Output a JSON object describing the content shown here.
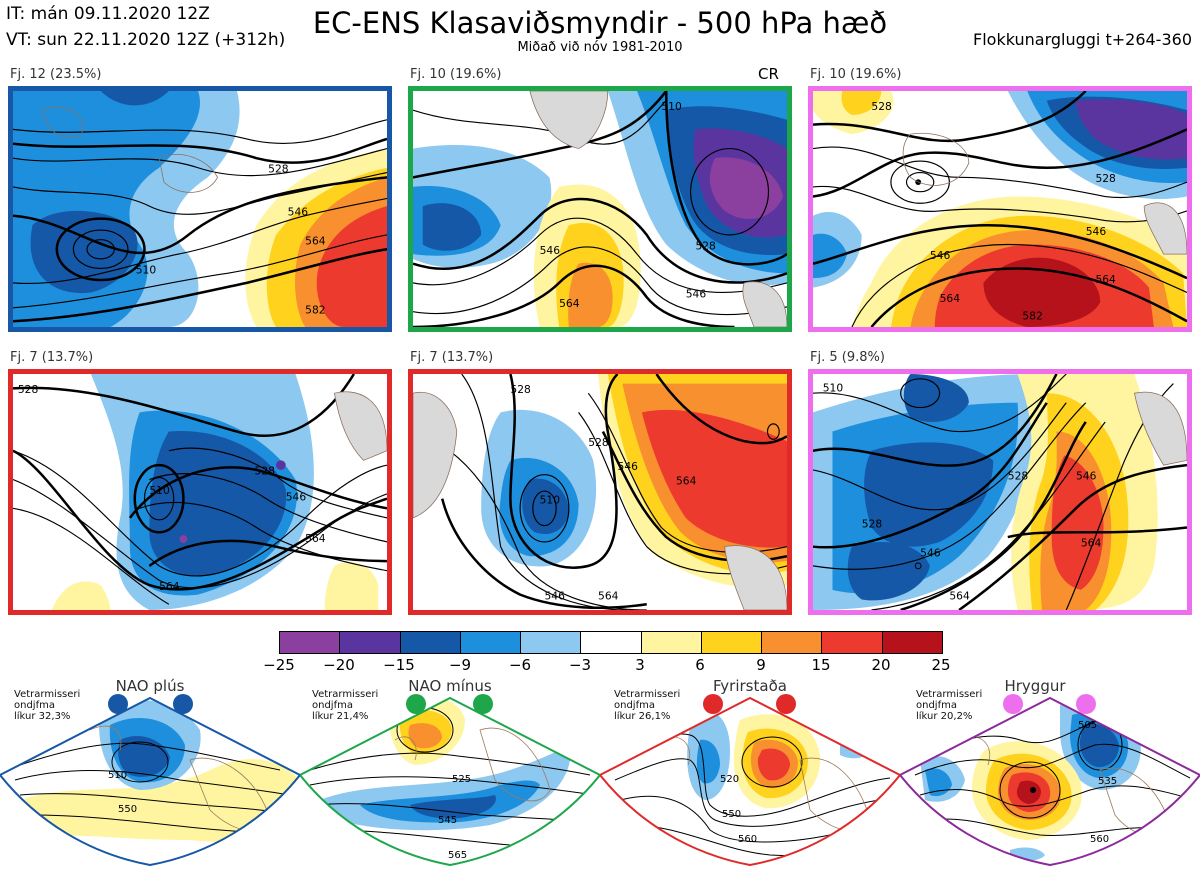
{
  "header": {
    "it_line": "IT: mán 09.11.2020 12Z",
    "vt_line": "VT: sun 22.11.2020 12Z  (+312h)",
    "title": "EC-ENS Klasaviðsmyndir - 500 hPa hæð",
    "subtitle": "Miðað við nóv 1981-2010",
    "window": "Flokkunargluggi t+264-360"
  },
  "clusters": [
    {
      "caption": "Fj. 12 (23.5%)",
      "border": "#1757a5",
      "extra": "",
      "contours": [
        "510",
        "528",
        "546",
        "564",
        "582"
      ]
    },
    {
      "caption": "Fj. 10 (19.6%)",
      "border": "#1ea64a",
      "extra": "CR",
      "contours": [
        "510",
        "528",
        "546",
        "564",
        "546"
      ]
    },
    {
      "caption": "Fj. 10 (19.6%)",
      "border": "#ee6fee",
      "extra": "",
      "contours": [
        "528",
        "546",
        "564",
        "582"
      ]
    },
    {
      "caption": "Fj. 7 (13.7%)",
      "border": "#e02a2a",
      "extra": "",
      "contours": [
        "528",
        "510",
        "546",
        "564"
      ]
    },
    {
      "caption": "Fj. 7 (13.7%)",
      "border": "#e02a2a",
      "extra": "",
      "contours": [
        "510",
        "528",
        "546",
        "564"
      ]
    },
    {
      "caption": "Fj. 5 (9.8%)",
      "border": "#ee6fee",
      "extra": "",
      "contours": [
        "510",
        "528",
        "546",
        "564"
      ]
    }
  ],
  "colorbar": {
    "ticks": [
      "−25",
      "−20",
      "−15",
      "−9",
      "−6",
      "−3",
      "3",
      "6",
      "9",
      "15",
      "20",
      "25"
    ],
    "colors": [
      "#8b3f9e",
      "#5a35a0",
      "#1558a8",
      "#1e8fdc",
      "#8cc8f0",
      "#ffffff",
      "#fff5a0",
      "#ffd21e",
      "#f99030",
      "#ed3a2e",
      "#b5121b"
    ]
  },
  "regimes": [
    {
      "name": "NAO plús",
      "note": [
        "Vetrarmisseri",
        "ondjfma",
        "líkur 32,3%"
      ],
      "color": "#1757a5",
      "contours": [
        "510",
        "550"
      ]
    },
    {
      "name": "NAO mínus",
      "note": [
        "Vetrarmisseri",
        "ondjfma",
        "líkur 21,4%"
      ],
      "color": "#1ea64a",
      "contours": [
        "525",
        "545",
        "565"
      ]
    },
    {
      "name": "Fyrirstaða",
      "note": [
        "Vetrarmisseri",
        "ondjfma",
        "líkur 26,1%"
      ],
      "color": "#e02a2a",
      "contours": [
        "520",
        "550",
        "560"
      ]
    },
    {
      "name": "Hryggur",
      "note": [
        "Vetrarmisseri",
        "ondjfma",
        "líkur 20,2%"
      ],
      "color": "#ee6fee",
      "contours": [
        "505",
        "535",
        "560"
      ]
    }
  ]
}
